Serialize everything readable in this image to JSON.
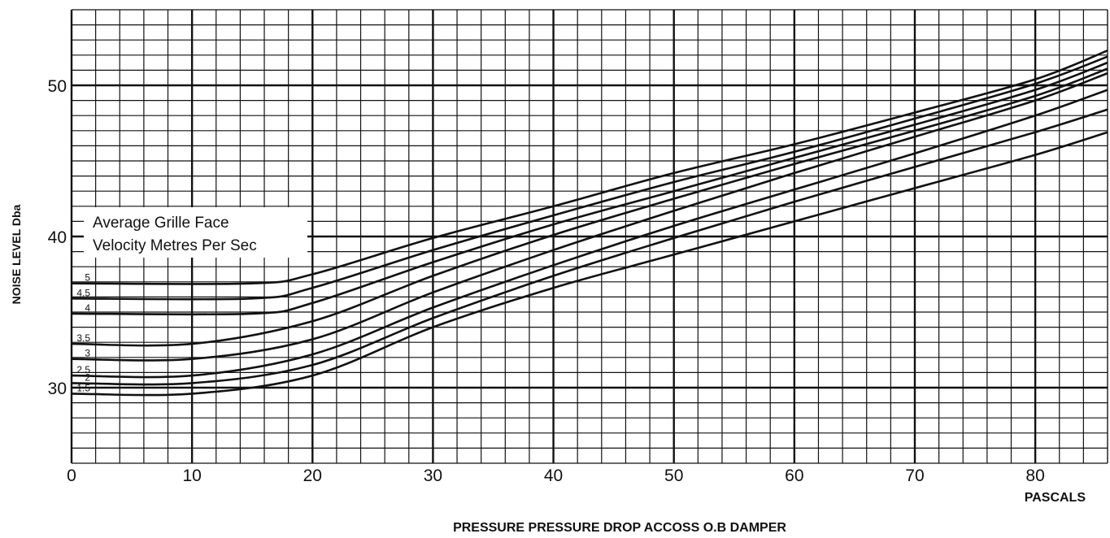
{
  "chart_data": {
    "type": "line",
    "title": "",
    "xlabel": "PRESSURE PRESSURE DROP ACCOSS O.B DAMPER",
    "x_unit_label": "PASCALS",
    "ylabel": "NOISE LEVEL Dba",
    "xlim": [
      0,
      86
    ],
    "ylim": [
      25,
      55
    ],
    "x_ticks": [
      0,
      10,
      20,
      30,
      40,
      50,
      60,
      70,
      80
    ],
    "y_ticks": [
      30,
      40,
      50
    ],
    "grid": true,
    "legend_title_lines": [
      "Average Grille Face",
      "Velocity Metres Per Sec"
    ],
    "series": [
      {
        "name": "5",
        "points": [
          [
            0,
            36.9
          ],
          [
            15,
            36.9
          ],
          [
            20,
            37.5
          ],
          [
            30,
            39.9
          ],
          [
            40,
            42.0
          ],
          [
            50,
            44.2
          ],
          [
            60,
            46.1
          ],
          [
            70,
            48.2
          ],
          [
            80,
            50.4
          ],
          [
            86,
            52.3
          ]
        ]
      },
      {
        "name": "4.5",
        "points": [
          [
            0,
            35.9
          ],
          [
            15,
            35.9
          ],
          [
            20,
            36.6
          ],
          [
            30,
            39.1
          ],
          [
            40,
            41.4
          ],
          [
            50,
            43.6
          ],
          [
            60,
            45.6
          ],
          [
            70,
            47.8
          ],
          [
            80,
            50.1
          ],
          [
            86,
            51.9
          ]
        ]
      },
      {
        "name": "4",
        "points": [
          [
            0,
            34.9
          ],
          [
            15,
            34.9
          ],
          [
            20,
            35.6
          ],
          [
            30,
            38.3
          ],
          [
            40,
            40.8
          ],
          [
            50,
            43.0
          ],
          [
            60,
            45.2
          ],
          [
            70,
            47.4
          ],
          [
            80,
            49.7
          ],
          [
            86,
            51.5
          ]
        ]
      },
      {
        "name": "3.5",
        "points": [
          [
            0,
            32.9
          ],
          [
            10,
            32.9
          ],
          [
            20,
            34.4
          ],
          [
            30,
            37.4
          ],
          [
            40,
            40.1
          ],
          [
            50,
            42.5
          ],
          [
            60,
            44.8
          ],
          [
            70,
            47.0
          ],
          [
            80,
            49.3
          ],
          [
            86,
            51.1
          ]
        ]
      },
      {
        "name": "3",
        "points": [
          [
            0,
            31.9
          ],
          [
            10,
            31.9
          ],
          [
            20,
            33.2
          ],
          [
            30,
            36.3
          ],
          [
            40,
            39.1
          ],
          [
            50,
            41.7
          ],
          [
            60,
            44.2
          ],
          [
            70,
            46.6
          ],
          [
            80,
            49.0
          ],
          [
            86,
            50.8
          ]
        ]
      },
      {
        "name": "2.5",
        "points": [
          [
            0,
            30.8
          ],
          [
            10,
            30.8
          ],
          [
            20,
            32.2
          ],
          [
            30,
            35.3
          ],
          [
            40,
            38.1
          ],
          [
            50,
            40.7
          ],
          [
            60,
            43.1
          ],
          [
            70,
            45.5
          ],
          [
            80,
            48.0
          ],
          [
            86,
            49.7
          ]
        ]
      },
      {
        "name": "2",
        "points": [
          [
            0,
            30.3
          ],
          [
            10,
            30.3
          ],
          [
            20,
            31.5
          ],
          [
            30,
            34.6
          ],
          [
            40,
            37.4
          ],
          [
            50,
            39.9
          ],
          [
            60,
            42.3
          ],
          [
            70,
            44.6
          ],
          [
            80,
            46.9
          ],
          [
            86,
            48.4
          ]
        ]
      },
      {
        "name": "1.5",
        "points": [
          [
            0,
            29.6
          ],
          [
            10,
            29.6
          ],
          [
            20,
            30.8
          ],
          [
            30,
            34.0
          ],
          [
            40,
            36.6
          ],
          [
            50,
            38.8
          ],
          [
            60,
            41.0
          ],
          [
            70,
            43.2
          ],
          [
            80,
            45.4
          ],
          [
            86,
            46.9
          ]
        ]
      }
    ]
  }
}
